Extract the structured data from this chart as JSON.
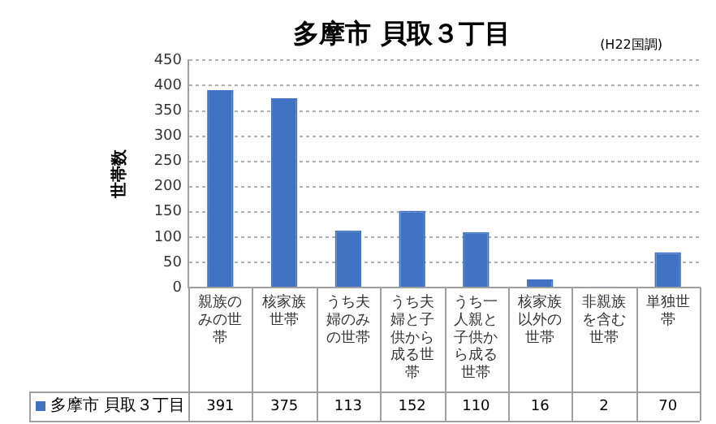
{
  "chart_data": {
    "type": "bar",
    "title": "多摩市 貝取３丁目",
    "ylabel": "世帯数",
    "annotations": [
      "(H22国調)"
    ],
    "categories": [
      "親族のみの世帯",
      "核家族世帯",
      "うち夫婦のみの世帯",
      "うち夫婦と子供から成る世帯",
      "うち一人親と子供から成る世帯",
      "核家族以外の世帯",
      "非親族を含む世帯",
      "単独世帯"
    ],
    "series": [
      {
        "name": "多摩市 貝取３丁目",
        "color": "#3f73c1",
        "values": [
          391,
          375,
          113,
          152,
          110,
          16,
          2,
          70
        ]
      }
    ],
    "ylim": [
      0,
      450
    ],
    "yticks": [
      0,
      50,
      100,
      150,
      200,
      250,
      300,
      350,
      400,
      450
    ],
    "grid": "y",
    "legend": "bottom",
    "data_labels": true
  }
}
